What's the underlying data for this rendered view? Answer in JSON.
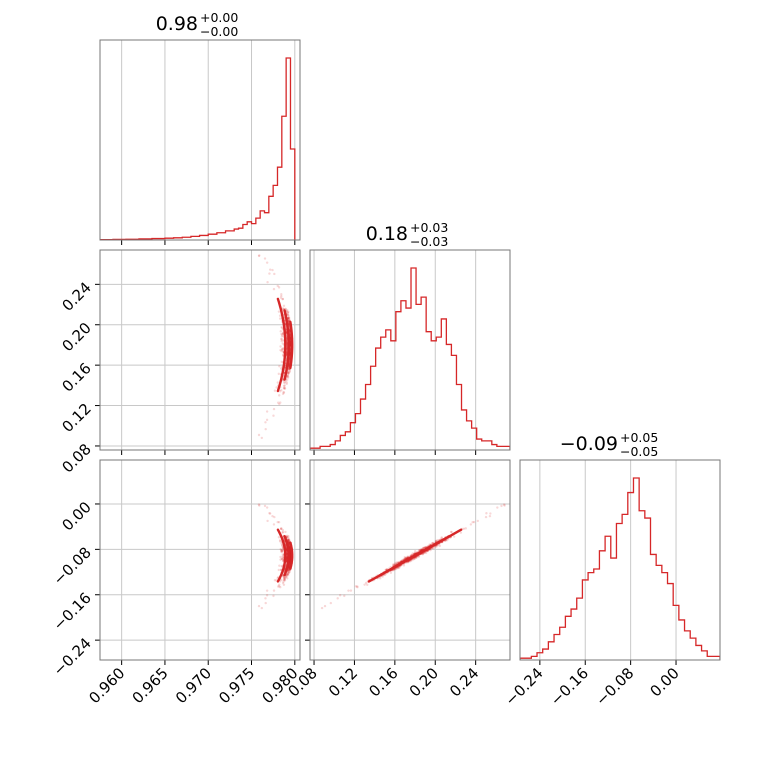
{
  "chart_data": {
    "type": "corner",
    "color": "#d62728",
    "panels": [
      {
        "id": "p0",
        "type": "histogram",
        "row": 0,
        "col": 0,
        "title": {
          "main": "0.98",
          "sup": "+0.00",
          "sub": "−0.00"
        },
        "xlim": [
          0.9575,
          0.9806
        ],
        "bin_edges": [
          0.9575,
          0.959,
          0.9605,
          0.962,
          0.9635,
          0.965,
          0.966,
          0.967,
          0.968,
          0.969,
          0.97,
          0.971,
          0.972,
          0.973,
          0.9735,
          0.974,
          0.9745,
          0.975,
          0.9755,
          0.976,
          0.9765,
          0.977,
          0.9775,
          0.978,
          0.9785,
          0.979,
          0.9795,
          0.98
        ],
        "counts": [
          0.002,
          0.003,
          0.004,
          0.006,
          0.008,
          0.01,
          0.012,
          0.015,
          0.02,
          0.025,
          0.032,
          0.04,
          0.05,
          0.06,
          0.065,
          0.085,
          0.1,
          0.09,
          0.12,
          0.16,
          0.15,
          0.24,
          0.3,
          0.4,
          0.68,
          1.0,
          0.5
        ],
        "yticks": []
      },
      {
        "id": "p1",
        "type": "scatter_contour",
        "row": 1,
        "col": 0,
        "xlim": [
          0.9575,
          0.9806
        ],
        "ylim": [
          0.076,
          0.274
        ],
        "yticks": [
          "0.08",
          "0.12",
          "0.16",
          "0.20",
          "0.24"
        ]
      },
      {
        "id": "p2",
        "type": "histogram",
        "row": 1,
        "col": 1,
        "title": {
          "main": "0.18",
          "sup": "+0.03",
          "sub": "−0.03"
        },
        "xlim": [
          0.076,
          0.274
        ],
        "bin_edges": [
          0.076,
          0.081,
          0.086,
          0.091,
          0.096,
          0.101,
          0.106,
          0.111,
          0.116,
          0.121,
          0.126,
          0.131,
          0.136,
          0.141,
          0.146,
          0.151,
          0.156,
          0.161,
          0.166,
          0.171,
          0.176,
          0.181,
          0.186,
          0.191,
          0.196,
          0.201,
          0.206,
          0.211,
          0.216,
          0.221,
          0.226,
          0.231,
          0.236,
          0.241,
          0.246,
          0.251,
          0.256,
          0.261,
          0.266,
          0.271,
          0.274
        ],
        "counts": [
          0.01,
          0.01,
          0.02,
          0.02,
          0.03,
          0.05,
          0.08,
          0.1,
          0.15,
          0.2,
          0.28,
          0.36,
          0.46,
          0.56,
          0.62,
          0.66,
          0.6,
          0.76,
          0.82,
          0.78,
          1.0,
          0.8,
          0.84,
          0.65,
          0.6,
          0.62,
          0.72,
          0.58,
          0.52,
          0.36,
          0.22,
          0.16,
          0.12,
          0.06,
          0.05,
          0.05,
          0.03,
          0.02,
          0.02,
          0.02
        ],
        "yticks": []
      },
      {
        "id": "p3",
        "type": "scatter_contour",
        "row": 2,
        "col": 0,
        "xlim": [
          0.9575,
          0.9806
        ],
        "ylim": [
          -0.275,
          0.0775
        ],
        "xticks": [
          "0.960",
          "0.965",
          "0.970",
          "0.975",
          "0.980"
        ],
        "yticks": [
          "−0.24",
          "−0.16",
          "−0.08",
          "0.00"
        ]
      },
      {
        "id": "p4",
        "type": "scatter_contour",
        "row": 2,
        "col": 1,
        "xlim": [
          0.076,
          0.274
        ],
        "ylim": [
          -0.275,
          0.0775
        ],
        "xticks": [
          "0.08",
          "0.12",
          "0.16",
          "0.20",
          "0.24"
        ]
      },
      {
        "id": "p5",
        "type": "histogram",
        "row": 2,
        "col": 2,
        "title": {
          "main": "−0.09",
          "sup": "+0.05",
          "sub": "−0.05"
        },
        "xlim": [
          -0.275,
          0.0775
        ],
        "bin_edges": [
          -0.275,
          -0.265,
          -0.255,
          -0.245,
          -0.235,
          -0.225,
          -0.215,
          -0.205,
          -0.195,
          -0.185,
          -0.175,
          -0.165,
          -0.155,
          -0.145,
          -0.135,
          -0.125,
          -0.115,
          -0.105,
          -0.095,
          -0.085,
          -0.075,
          -0.065,
          -0.055,
          -0.045,
          -0.035,
          -0.025,
          -0.015,
          -0.005,
          0.005,
          0.015,
          0.025,
          0.035,
          0.045,
          0.055,
          0.065,
          0.0775
        ],
        "counts": [
          0.01,
          0.01,
          0.02,
          0.04,
          0.06,
          0.1,
          0.14,
          0.18,
          0.24,
          0.28,
          0.34,
          0.44,
          0.48,
          0.5,
          0.6,
          0.68,
          0.56,
          0.75,
          0.8,
          0.92,
          1.0,
          0.82,
          0.78,
          0.58,
          0.52,
          0.48,
          0.42,
          0.3,
          0.22,
          0.16,
          0.12,
          0.08,
          0.05,
          0.02,
          0.02
        ],
        "xticks": [
          "−0.24",
          "−0.16",
          "−0.08",
          "0.00"
        ],
        "yticks": []
      }
    ]
  }
}
